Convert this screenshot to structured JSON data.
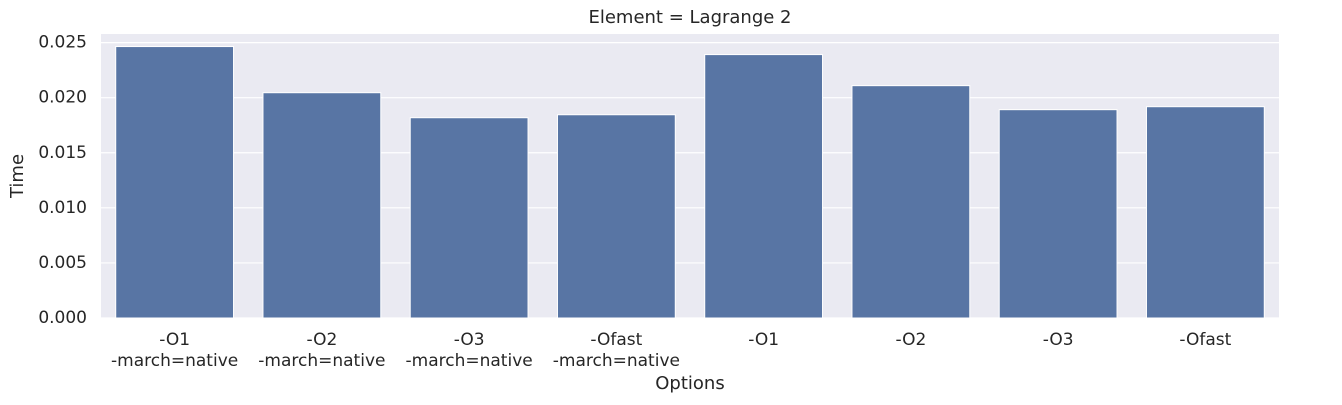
{
  "chart_data": {
    "type": "bar",
    "title": "Element = Lagrange 2",
    "x_label": "Options",
    "y_label": "Time",
    "categories": [
      "-O1\n-march=native",
      "-O2\n-march=native",
      "-O3\n-march=native",
      "-Ofast\n-march=native",
      "-O1",
      "-O2",
      "-O3",
      "-Ofast"
    ],
    "values": [
      0.02464,
      0.02045,
      0.01818,
      0.01845,
      0.02391,
      0.02109,
      0.01891,
      0.01918
    ],
    "color": "#5875a4",
    "ylim": [
      0,
      0.02578
    ],
    "yticks": [
      {
        "value": 0,
        "label": "0.000"
      },
      {
        "value": 0.005,
        "label": "0.005"
      },
      {
        "value": 0.01,
        "label": "0.010"
      },
      {
        "value": 0.015,
        "label": "0.015"
      },
      {
        "value": 0.02,
        "label": "0.020"
      },
      {
        "value": 0.025,
        "label": "0.025"
      }
    ],
    "grid": true
  }
}
